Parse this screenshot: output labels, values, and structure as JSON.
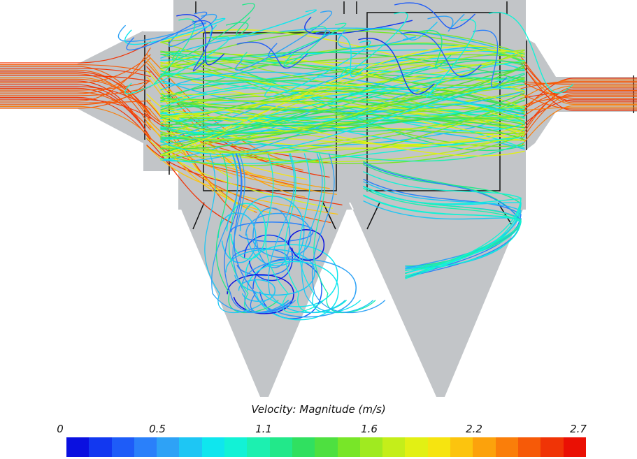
{
  "legend": {
    "title": "Velocity: Magnitude (m/s)",
    "ticks": [
      "0",
      "0.5",
      "1.1",
      "1.6",
      "2.2",
      "2.7"
    ],
    "min": 0,
    "max": 2.7
  },
  "colors": {
    "housing": "#c2c5c8",
    "frame": "#111111",
    "colormap": [
      "#0a10e0",
      "#1238f0",
      "#1e5cf8",
      "#2a80fa",
      "#2ea2f6",
      "#1ec6f4",
      "#0fe6ee",
      "#12f2d6",
      "#1cf0b0",
      "#22e88a",
      "#30e060",
      "#4ee040",
      "#78e628",
      "#a0ea20",
      "#c4ee1a",
      "#e2f014",
      "#f6e410",
      "#fcc40e",
      "#fca20c",
      "#fa7e0a",
      "#f65a08",
      "#f03406",
      "#ea1004"
    ]
  }
}
